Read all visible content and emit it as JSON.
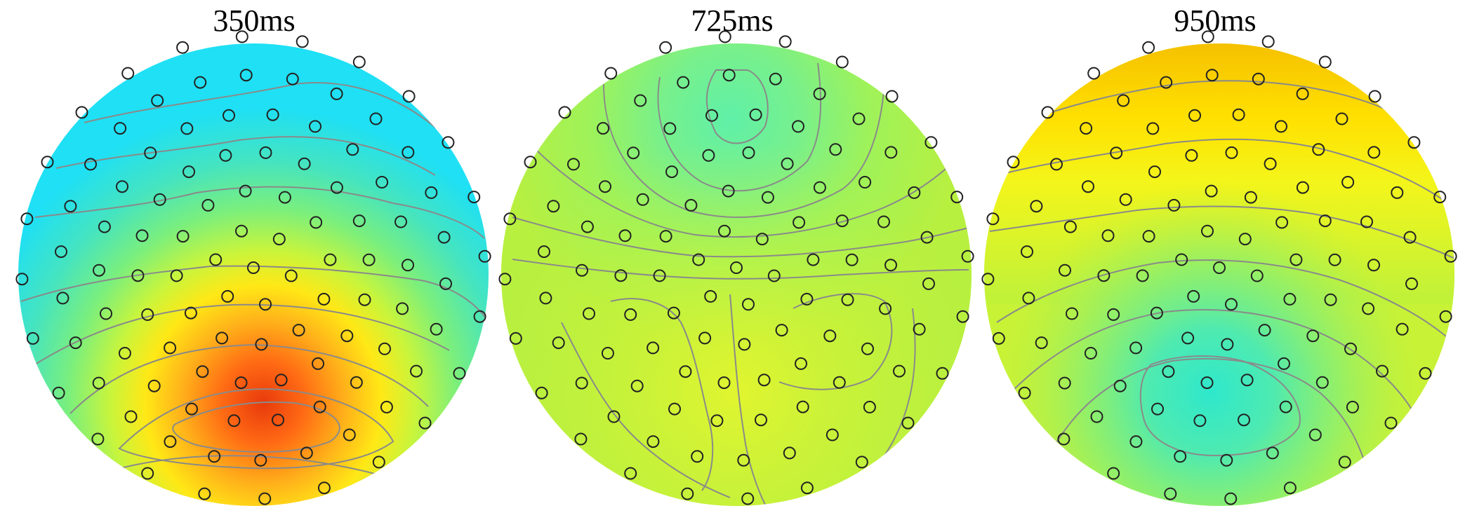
{
  "figure": {
    "maps": [
      {
        "title": "350ms"
      },
      {
        "title": "725ms"
      },
      {
        "title": "950ms"
      }
    ]
  },
  "chart_data": {
    "type": "heatmap",
    "description_type": "scalp topography",
    "panels": [
      {
        "title": "350ms",
        "pattern": "positive posterior-central maximum",
        "peak_color": "#e83a0c",
        "background_color": "#3fd8d0"
      },
      {
        "title": "725ms",
        "pattern": "near-uniform, weak frontal minimum",
        "peak_color": "#c8f23a",
        "background_color": "#b8f040"
      },
      {
        "title": "950ms",
        "pattern": "frontal positive, posterior-central negative",
        "peak_color": "#f5c400",
        "background_color": "#41e8c8"
      }
    ],
    "colors": {
      "contour": "#888888",
      "electrode": "#222222"
    },
    "colormap": [
      "#00e5ff",
      "#44f0c0",
      "#aaf545",
      "#ffff00",
      "#ffaa00",
      "#ff3300"
    ]
  }
}
